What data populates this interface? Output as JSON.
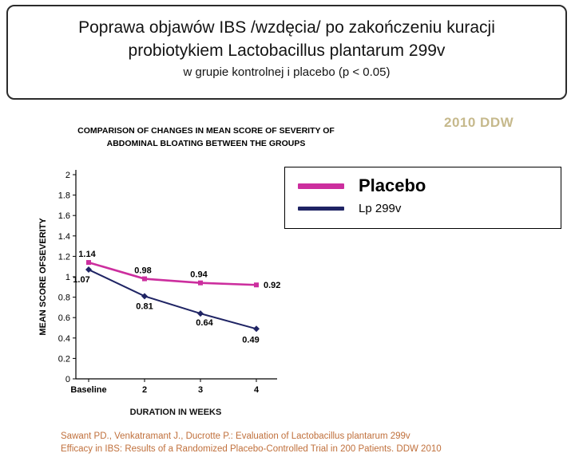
{
  "slide": {
    "title_line1": "Poprawa objawów IBS /wzdęcia/ po zakończeniu kuracji",
    "title_line2": "probiotykiem Lactobacillus plantarum 299v",
    "subtitle": "w grupie kontrolnej i placebo (p < 0.05)",
    "badge": "2010 DDW",
    "footer_line1": "Sawant PD., Venkatramant J., Ducrotte P.:  Evaluation of Lactobacillus plantarum 299v",
    "footer_line2": "Efficacy in IBS:  Results of a Randomized Placebo-Controlled Trial in 200 Patients.  DDW 2010"
  },
  "colors": {
    "badge": "#C6B98C",
    "footer": "#C0703C",
    "placebo": "#CC2E9E",
    "lp299v": "#1F2464"
  },
  "chart_data": {
    "type": "line",
    "title": "COMPARISON OF CHANGES IN MEAN SCORE OF SEVERITY OF ABDOMINAL BLOATING BETWEEN THE GROUPS",
    "title_lines": [
      "COMPARISON OF CHANGES IN MEAN SCORE OF SEVERITY OF",
      "ABDOMINAL BLOATING BETWEEN THE GROUPS"
    ],
    "categories": [
      "Baseline",
      "2",
      "3",
      "4"
    ],
    "series": [
      {
        "name": "Placebo",
        "values": [
          1.14,
          0.98,
          0.94,
          0.92
        ],
        "color": "#CC2E9E",
        "marker": "square"
      },
      {
        "name": "Lp 299v",
        "values": [
          1.07,
          0.81,
          0.64,
          0.49
        ],
        "color": "#1F2464",
        "marker": "diamond"
      }
    ],
    "xlabel": "DURATION IN WEEKS",
    "ylabel": "MEAN SCORE OFSEVERITY",
    "ylim": [
      0,
      2
    ],
    "ytick_step": 0.2,
    "yticks": [
      "0",
      "0.2",
      "0.4",
      "0.6",
      "0.8",
      "1",
      "1.2",
      "1.4",
      "1.6",
      "1.8",
      "2"
    ],
    "grid": false,
    "legend_position": "top-right"
  }
}
